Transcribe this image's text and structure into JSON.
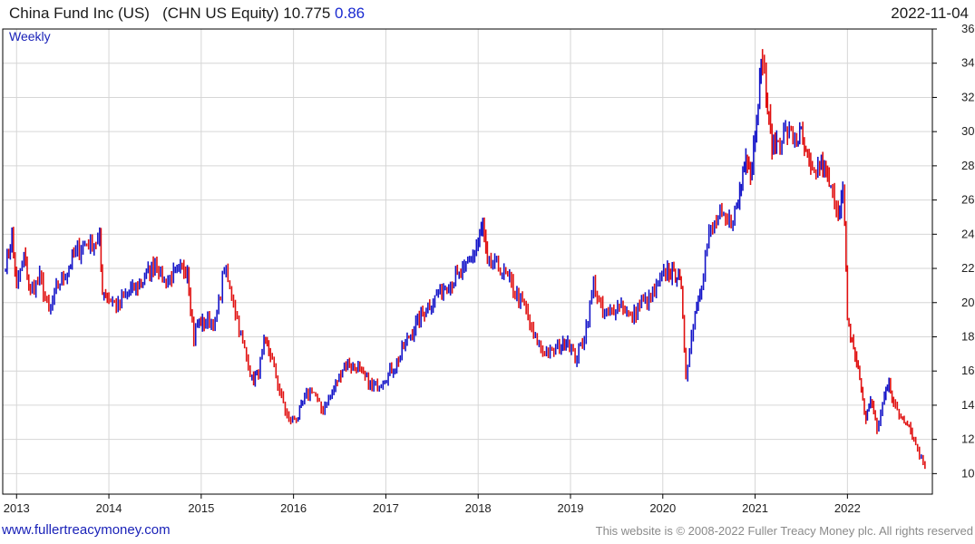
{
  "header": {
    "title": "China Fund Inc (US)   (CHN US Equity) 10.775",
    "change": "0.86",
    "date": "2022-11-04"
  },
  "footer": {
    "link": "www.fullertreacymoney.com",
    "copyright": "This website is © 2008-2022 Fuller Treacy Money plc. All rights reserved"
  },
  "chart_data": {
    "type": "line",
    "style": "weekly price bars (up = blue, down = red)",
    "frequency_label": "Weekly",
    "grid": true,
    "x_ticks": [
      "2013",
      "2014",
      "2015",
      "2016",
      "2017",
      "2018",
      "2019",
      "2020",
      "2021",
      "2022"
    ],
    "y_ticks": [
      10,
      12,
      14,
      16,
      18,
      20,
      22,
      24,
      26,
      28,
      30,
      32,
      34,
      36
    ],
    "ylim": [
      8.8,
      36
    ],
    "xlim": [
      2012.85,
      2022.92
    ],
    "colors": {
      "up": "#1414c8",
      "down": "#e01010",
      "grid": "#d6d6d6",
      "axis": "#000000"
    },
    "series": [
      {
        "x": [
          2012.88,
          2012.95,
          2013.0,
          2013.08,
          2013.15,
          2013.25,
          2013.35,
          2013.45,
          2013.55,
          2013.62,
          2013.7,
          2013.8,
          2013.9,
          2013.93,
          2014.0,
          2014.1,
          2014.2,
          2014.35,
          2014.5,
          2014.6,
          2014.7,
          2014.85,
          2014.92,
          2014.96,
          2015.05,
          2015.15,
          2015.25,
          2015.35,
          2015.45,
          2015.55,
          2015.62,
          2015.68,
          2015.75,
          2015.85,
          2015.95,
          2016.05,
          2016.1,
          2016.2,
          2016.3,
          2016.4,
          2016.55,
          2016.7,
          2016.85,
          2016.97,
          2017.1,
          2017.25,
          2017.4,
          2017.55,
          2017.7,
          2017.85,
          2018.0,
          2018.05,
          2018.1,
          2018.2,
          2018.3,
          2018.4,
          2018.5,
          2018.6,
          2018.7,
          2018.8,
          2018.9,
          2018.97,
          2019.05,
          2019.15,
          2019.25,
          2019.35,
          2019.45,
          2019.55,
          2019.65,
          2019.75,
          2019.85,
          2019.95,
          2020.05,
          2020.12,
          2020.17,
          2020.2,
          2020.25,
          2020.35,
          2020.42,
          2020.5,
          2020.6,
          2020.7,
          2020.8,
          2020.85,
          2020.9,
          2020.95,
          2021.0,
          2021.05,
          2021.08,
          2021.12,
          2021.15,
          2021.2,
          2021.25,
          2021.35,
          2021.45,
          2021.5,
          2021.55,
          2021.62,
          2021.7,
          2021.75,
          2021.82,
          2021.9,
          2021.95,
          2021.97,
          2022.0,
          2022.05,
          2022.1,
          2022.15,
          2022.2,
          2022.25,
          2022.32,
          2022.4,
          2022.45,
          2022.5,
          2022.58,
          2022.65,
          2022.72,
          2022.8,
          2022.84
        ],
        "close": [
          22.3,
          23.8,
          21.0,
          22.7,
          20.6,
          21.5,
          19.5,
          21.0,
          21.8,
          22.8,
          23.2,
          23.5,
          23.6,
          20.8,
          20.3,
          19.8,
          20.5,
          21.2,
          22.4,
          21.2,
          21.6,
          22.0,
          17.9,
          18.8,
          18.9,
          18.7,
          22.0,
          20.0,
          17.6,
          15.5,
          15.9,
          17.6,
          17.0,
          14.8,
          13.0,
          13.3,
          14.2,
          15.0,
          13.7,
          14.5,
          16.4,
          16.2,
          15.0,
          15.5,
          16.3,
          18.0,
          19.4,
          20.4,
          21.2,
          21.8,
          23.5,
          24.5,
          22.0,
          22.3,
          21.5,
          20.7,
          19.8,
          18.0,
          17.2,
          17.0,
          17.5,
          17.9,
          16.7,
          18.0,
          21.0,
          19.3,
          19.5,
          20.0,
          19.1,
          19.8,
          20.2,
          21.0,
          22.0,
          21.5,
          21.8,
          20.5,
          15.8,
          19.5,
          21.2,
          24.0,
          25.0,
          24.5,
          25.5,
          27.0,
          29.0,
          27.5,
          30.0,
          33.0,
          34.5,
          32.0,
          30.5,
          29.0,
          29.5,
          30.0,
          29.5,
          29.8,
          28.5,
          27.3,
          28.0,
          27.8,
          26.5,
          25.5,
          26.5,
          24.5,
          18.8,
          17.8,
          16.5,
          15.0,
          13.0,
          14.5,
          12.5,
          14.5,
          15.5,
          14.0,
          13.3,
          13.1,
          12.0,
          10.9,
          10.4
        ]
      }
    ]
  }
}
